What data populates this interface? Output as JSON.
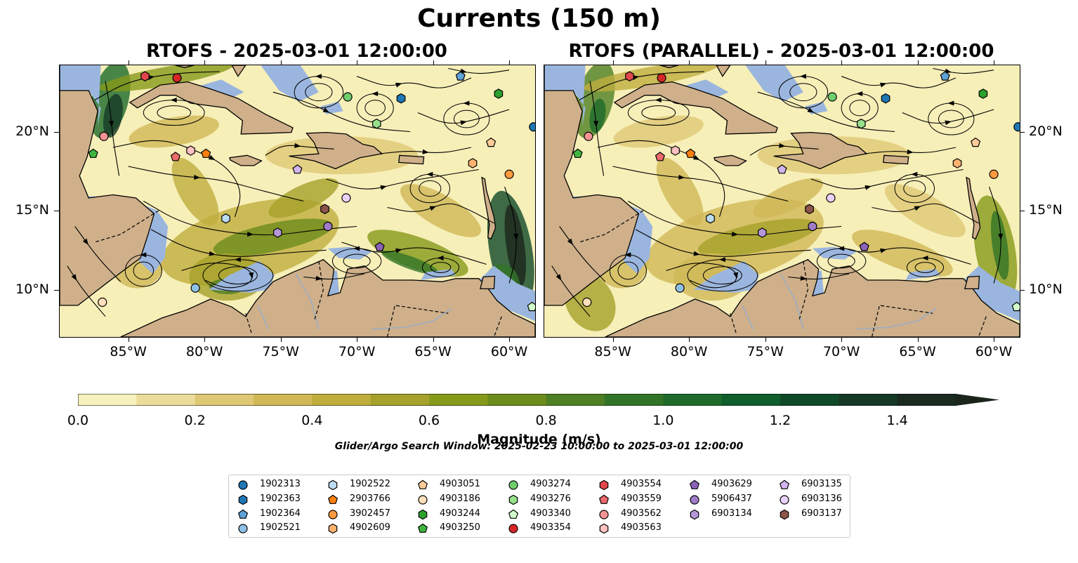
{
  "figure": {
    "title": "Currents (150 m)",
    "left_panel_title": "RTOFS - 2025-03-01 12:00:00",
    "right_panel_title": "RTOFS (PARALLEL) - 2025-03-01 12:00:00",
    "search_window": "Glider/Argo Search Window: 2025-02-23 10:00:00 to 2025-03-01 12:00:00"
  },
  "axes": {
    "lon_ticks": [
      "85°W",
      "80°W",
      "75°W",
      "70°W",
      "65°W",
      "60°W"
    ],
    "lat_ticks": [
      "20°N",
      "15°N",
      "10°N"
    ],
    "lon_range": [
      -89.5,
      -58.3
    ],
    "lat_range": [
      7.0,
      24.2
    ]
  },
  "colorbar": {
    "label": "Magnitude (m/s)",
    "ticks": [
      "0.0",
      "0.2",
      "0.4",
      "0.6",
      "0.8",
      "1.0",
      "1.2",
      "1.4"
    ],
    "range": [
      0.0,
      1.5
    ],
    "extend": "max",
    "colors": [
      "#f7f2bd",
      "#ebdc9b",
      "#dfc874",
      "#d0b856",
      "#bfae3e",
      "#a5a12a",
      "#869a1a",
      "#6b8c1b",
      "#4f7f23",
      "#327427",
      "#1d6a2b",
      "#0f5e2c",
      "#0f4a28",
      "#163826",
      "#1a2a1f",
      "#1b251b"
    ]
  },
  "map_colors": {
    "ocean_low": "#f7efb8",
    "land": "#cfb08a",
    "shallow": "#9bb6de",
    "strong_current": "#1f6b2a",
    "medium_current": "#a5a12a"
  },
  "legend": {
    "columns": [
      [
        {
          "id": "1902313",
          "color": "#1f77b4",
          "marker": "circle"
        },
        {
          "id": "1902363",
          "color": "#1f77b4",
          "marker": "hexagon"
        },
        {
          "id": "1902364",
          "color": "#5fa2d6",
          "marker": "pentagon"
        },
        {
          "id": "1902521",
          "color": "#8fc1e6",
          "marker": "circle"
        }
      ],
      [
        {
          "id": "1902522",
          "color": "#bcdcf3",
          "marker": "hexagon"
        },
        {
          "id": "2903766",
          "color": "#ff7f0e",
          "marker": "pentagon"
        },
        {
          "id": "3902457",
          "color": "#ff9a3e",
          "marker": "circle"
        },
        {
          "id": "4902609",
          "color": "#ffb26e",
          "marker": "hexagon"
        }
      ],
      [
        {
          "id": "4903051",
          "color": "#ffcc99",
          "marker": "pentagon"
        },
        {
          "id": "4903186",
          "color": "#ffe0bb",
          "marker": "circle"
        },
        {
          "id": "4903244",
          "color": "#2ca02c",
          "marker": "hexagon"
        },
        {
          "id": "4903250",
          "color": "#3fb53f",
          "marker": "pentagon"
        }
      ],
      [
        {
          "id": "4903274",
          "color": "#6fcf6f",
          "marker": "circle"
        },
        {
          "id": "4903276",
          "color": "#98df8a",
          "marker": "hexagon"
        },
        {
          "id": "4903340",
          "color": "#d4ffcc",
          "marker": "pentagon"
        },
        {
          "id": "4903354",
          "color": "#d62728",
          "marker": "circle"
        }
      ],
      [
        {
          "id": "4903554",
          "color": "#e0474a",
          "marker": "hexagon"
        },
        {
          "id": "4903559",
          "color": "#ea6b6d",
          "marker": "pentagon"
        },
        {
          "id": "4903562",
          "color": "#f39394",
          "marker": "circle"
        },
        {
          "id": "4903563",
          "color": "#ffc1c1",
          "marker": "hexagon"
        }
      ],
      [
        {
          "id": "4903629",
          "color": "#8c63b8",
          "marker": "pentagon"
        },
        {
          "id": "5906437",
          "color": "#a07cc8",
          "marker": "circle"
        },
        {
          "id": "6903134",
          "color": "#b596d8",
          "marker": "hexagon"
        }
      ],
      [
        {
          "id": "6903135",
          "color": "#d2b4ee",
          "marker": "pentagon"
        },
        {
          "id": "6903136",
          "color": "#e8d2fb",
          "marker": "circle"
        },
        {
          "id": "6903137",
          "color": "#8c564b",
          "marker": "hexagon"
        }
      ]
    ]
  },
  "floats": [
    {
      "id": "1902313",
      "lon": -58.4,
      "lat": 20.3
    },
    {
      "id": "1902363",
      "lon": -67.1,
      "lat": 22.1
    },
    {
      "id": "1902364",
      "lon": -63.2,
      "lat": 23.5
    },
    {
      "id": "1902521",
      "lon": -80.6,
      "lat": 10.1
    },
    {
      "id": "1902522",
      "lon": -78.6,
      "lat": 14.5
    },
    {
      "id": "2903766",
      "lon": -79.9,
      "lat": 18.6
    },
    {
      "id": "3902457",
      "lon": -60.0,
      "lat": 17.3
    },
    {
      "id": "4902609",
      "lon": -62.4,
      "lat": 18.0
    },
    {
      "id": "4903051",
      "lon": -61.2,
      "lat": 19.3
    },
    {
      "id": "4903186",
      "lon": -86.7,
      "lat": 9.2
    },
    {
      "id": "4903244",
      "lon": -60.7,
      "lat": 22.4
    },
    {
      "id": "4903250",
      "lon": -87.3,
      "lat": 18.6
    },
    {
      "id": "4903274",
      "lon": -70.6,
      "lat": 22.2
    },
    {
      "id": "4903276",
      "lon": -68.7,
      "lat": 20.5
    },
    {
      "id": "4903340",
      "lon": -58.5,
      "lat": 8.9
    },
    {
      "id": "4903354",
      "lon": -81.8,
      "lat": 23.4
    },
    {
      "id": "4903554",
      "lon": -83.9,
      "lat": 23.5
    },
    {
      "id": "4903559",
      "lon": -81.9,
      "lat": 18.4
    },
    {
      "id": "4903562",
      "lon": -86.6,
      "lat": 19.7
    },
    {
      "id": "4903563",
      "lon": -80.9,
      "lat": 18.8
    },
    {
      "id": "4903629",
      "lon": -68.5,
      "lat": 12.7
    },
    {
      "id": "5906437",
      "lon": -71.9,
      "lat": 14.0
    },
    {
      "id": "6903134",
      "lon": -75.2,
      "lat": 13.6
    },
    {
      "id": "6903135",
      "lon": -73.9,
      "lat": 17.6
    },
    {
      "id": "6903136",
      "lon": -70.7,
      "lat": 15.8
    },
    {
      "id": "6903137",
      "lon": -72.1,
      "lat": 15.1
    }
  ]
}
